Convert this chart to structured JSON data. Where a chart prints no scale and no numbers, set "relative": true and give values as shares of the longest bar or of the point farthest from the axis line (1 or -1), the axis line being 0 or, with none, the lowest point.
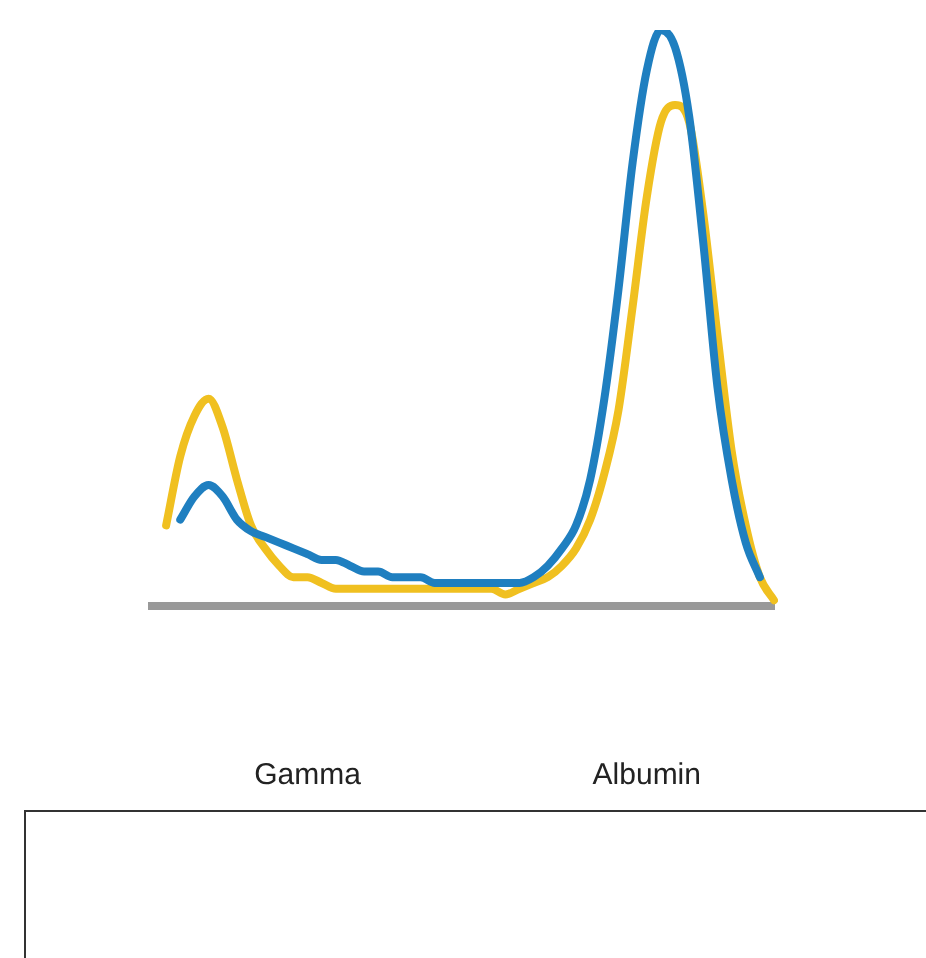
{
  "chart_data": {
    "type": "line",
    "relative": true,
    "categories": [
      null,
      null,
      null,
      null,
      null,
      null,
      null,
      null,
      null,
      null,
      null,
      "Gamma",
      null,
      null,
      null,
      null,
      null,
      null,
      null,
      null,
      null,
      null,
      null,
      null,
      null,
      null,
      null,
      null,
      null,
      null,
      null,
      null,
      null,
      null,
      null,
      "Albumin",
      null,
      null,
      null,
      null,
      null,
      null,
      null,
      null,
      null
    ],
    "series": [
      {
        "color": "#1f7fc0",
        "values": [
          null,
          null,
          0.15,
          0.19,
          0.21,
          0.19,
          0.15,
          0.13,
          0.12,
          0.11,
          0.1,
          0.09,
          0.08,
          0.08,
          0.07,
          0.06,
          0.06,
          0.05,
          0.05,
          0.05,
          0.04,
          0.04,
          0.04,
          0.04,
          0.04,
          0.04,
          0.04,
          0.05,
          0.07,
          0.1,
          0.14,
          0.22,
          0.36,
          0.55,
          0.77,
          0.93,
          1,
          0.97,
          0.85,
          0.63,
          0.38,
          0.22,
          0.11,
          0.05,
          null
        ]
      },
      {
        "color": "#f0c020",
        "values": [
          null,
          0.14,
          0.26,
          0.33,
          0.36,
          0.31,
          0.22,
          0.14,
          0.1,
          0.07,
          0.05,
          0.05,
          0.04,
          0.03,
          0.03,
          0.03,
          0.03,
          0.03,
          0.03,
          0.03,
          0.03,
          0.03,
          0.03,
          0.03,
          0.03,
          0.02,
          0.03,
          0.04,
          0.05,
          0.07,
          0.1,
          0.15,
          0.23,
          0.34,
          0.52,
          0.71,
          0.84,
          0.87,
          0.84,
          0.68,
          0.47,
          0.27,
          0.14,
          0.05,
          0.01
        ]
      }
    ],
    "grid": false,
    "legend": false
  }
}
